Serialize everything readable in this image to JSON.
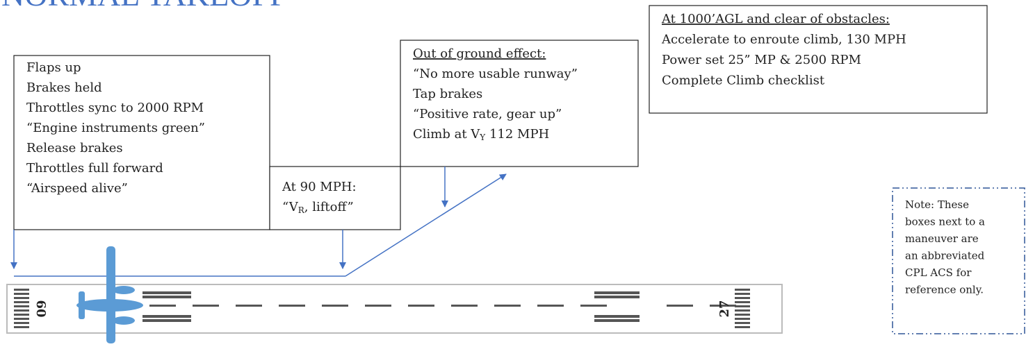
{
  "title": "NORMAL TAKEOFF",
  "boxes": [
    {
      "lines": [
        "Flaps up",
        "Brakes held",
        "Throttles sync to 2000 RPM",
        "“Engine instruments green”",
        "Release brakes",
        "Throttles full forward",
        "“Airspeed alive”"
      ]
    },
    {
      "lines": [
        "At 90 MPH:",
        {
          "text": "“V",
          "sub": "R",
          "rest": ", liftoff”"
        }
      ]
    },
    {
      "heading": "Out of ground effect:",
      "lines": [
        "“No more usable runway”",
        "Tap brakes",
        "“Positive rate, gear up”",
        {
          "text": "Climb at V",
          "sub": "Y",
          "rest": " 112 MPH"
        }
      ]
    },
    {
      "heading": "At 1000’AGL and clear of obstacles:",
      "lines": [
        "Accelerate to enroute climb, 130 MPH",
        "Power set 25” MP & 2500 RPM",
        "Complete Climb checklist"
      ]
    }
  ],
  "note": {
    "lines": [
      "Note: These",
      "boxes next to a",
      "maneuver are",
      "an abbreviated",
      "CPL ACS for",
      "reference only."
    ]
  },
  "runway": {
    "left_number": "60",
    "right_number": "27"
  }
}
